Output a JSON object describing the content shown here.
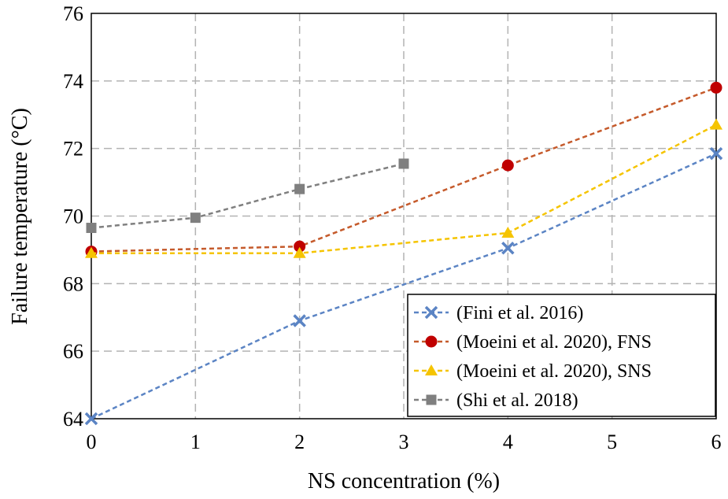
{
  "chart_data": {
    "type": "line",
    "xlabel": "NS concentration (%)",
    "ylabel": "Failure temperature (°C)",
    "xlim": [
      0,
      6
    ],
    "ylim": [
      64,
      76
    ],
    "xticks": [
      0,
      1,
      2,
      3,
      4,
      5,
      6
    ],
    "yticks": [
      64,
      66,
      68,
      70,
      72,
      74,
      76
    ],
    "grid": true,
    "legend_position": "bottom-right",
    "series": [
      {
        "name": "(Fini et al. 2016)",
        "marker": "x",
        "color": "#5b84c4",
        "points": [
          [
            0,
            64.0
          ],
          [
            2,
            66.9
          ],
          [
            4,
            69.05
          ],
          [
            6,
            71.85
          ]
        ]
      },
      {
        "name": "(Moeini et al. 2020), FNS",
        "marker": "circle",
        "color": "#c00000",
        "line_color": "#c55a2b",
        "points": [
          [
            0,
            68.95
          ],
          [
            2,
            69.1
          ],
          [
            4,
            71.5
          ],
          [
            6,
            73.8
          ]
        ]
      },
      {
        "name": "(Moeini et al. 2020), SNS",
        "marker": "triangle",
        "color": "#f5c400",
        "points": [
          [
            0,
            68.9
          ],
          [
            2,
            68.9
          ],
          [
            4,
            69.5
          ],
          [
            6,
            72.7
          ]
        ]
      },
      {
        "name": "(Shi et al. 2018)",
        "marker": "square",
        "color": "#7f7f7f",
        "points": [
          [
            0,
            69.65
          ],
          [
            1,
            69.95
          ],
          [
            2,
            70.8
          ],
          [
            3,
            71.55
          ]
        ]
      }
    ]
  }
}
